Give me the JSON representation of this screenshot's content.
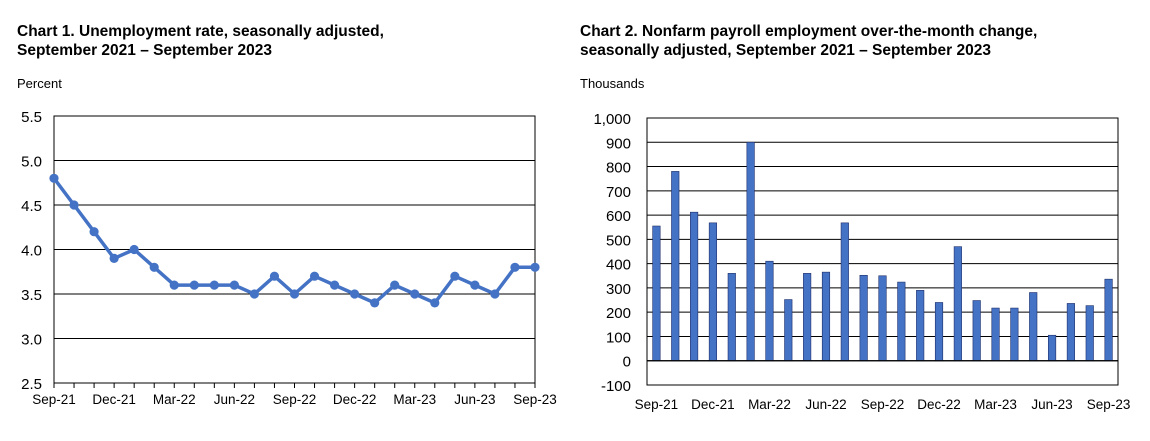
{
  "chart_data": [
    {
      "type": "line",
      "title_lines": [
        "Chart 1. Unemployment rate, seasonally adjusted,",
        "September 2021 – September 2023"
      ],
      "ylabel": "Percent",
      "ylim": [
        2.5,
        5.5
      ],
      "yticks": [
        2.5,
        3.0,
        3.5,
        4.0,
        4.5,
        5.0,
        5.5
      ],
      "ytick_labels": [
        "2.5",
        "3.0",
        "3.5",
        "4.0",
        "4.5",
        "5.0",
        "5.5"
      ],
      "xtick_labels": [
        "Sep-21",
        "Dec-21",
        "Mar-22",
        "Jun-22",
        "Sep-22",
        "Dec-22",
        "Mar-23",
        "Jun-23",
        "Sep-23"
      ],
      "x": [
        "Sep-21",
        "Oct-21",
        "Nov-21",
        "Dec-21",
        "Jan-22",
        "Feb-22",
        "Mar-22",
        "Apr-22",
        "May-22",
        "Jun-22",
        "Jul-22",
        "Aug-22",
        "Sep-22",
        "Oct-22",
        "Nov-22",
        "Dec-22",
        "Jan-23",
        "Feb-23",
        "Mar-23",
        "Apr-23",
        "May-23",
        "Jun-23",
        "Jul-23",
        "Aug-23",
        "Sep-23"
      ],
      "values": [
        4.8,
        4.5,
        4.2,
        3.9,
        4.0,
        3.8,
        3.6,
        3.6,
        3.6,
        3.6,
        3.5,
        3.7,
        3.5,
        3.7,
        3.6,
        3.5,
        3.4,
        3.6,
        3.5,
        3.4,
        3.7,
        3.6,
        3.5,
        3.8,
        3.8
      ],
      "color": "#4472C4",
      "grid": true
    },
    {
      "type": "bar",
      "title_lines": [
        "Chart 2. Nonfarm payroll employment over-the-month change,",
        "seasonally adjusted, September 2021 – September 2023"
      ],
      "ylabel": "Thousands",
      "ylim": [
        -100,
        1000
      ],
      "yticks": [
        -100,
        0,
        100,
        200,
        300,
        400,
        500,
        600,
        700,
        800,
        900,
        1000
      ],
      "ytick_labels": [
        "-100",
        "0",
        "100",
        "200",
        "300",
        "400",
        "500",
        "600",
        "700",
        "800",
        "900",
        "1,000"
      ],
      "xtick_labels": [
        "Sep-21",
        "Dec-21",
        "Mar-22",
        "Jun-22",
        "Sep-22",
        "Dec-22",
        "Mar-23",
        "Jun-23",
        "Sep-23"
      ],
      "x": [
        "Sep-21",
        "Oct-21",
        "Nov-21",
        "Dec-21",
        "Jan-22",
        "Feb-22",
        "Mar-22",
        "Apr-22",
        "May-22",
        "Jun-22",
        "Jul-22",
        "Aug-22",
        "Sep-22",
        "Oct-22",
        "Nov-22",
        "Dec-22",
        "Jan-23",
        "Feb-23",
        "Mar-23",
        "Apr-23",
        "May-23",
        "Jun-23",
        "Jul-23",
        "Aug-23",
        "Sep-23"
      ],
      "values": [
        555,
        780,
        612,
        568,
        360,
        900,
        410,
        252,
        360,
        365,
        568,
        352,
        350,
        324,
        290,
        240,
        470,
        248,
        217,
        217,
        281,
        105,
        236,
        227,
        336
      ],
      "color": "#4472C4",
      "grid": true
    }
  ]
}
